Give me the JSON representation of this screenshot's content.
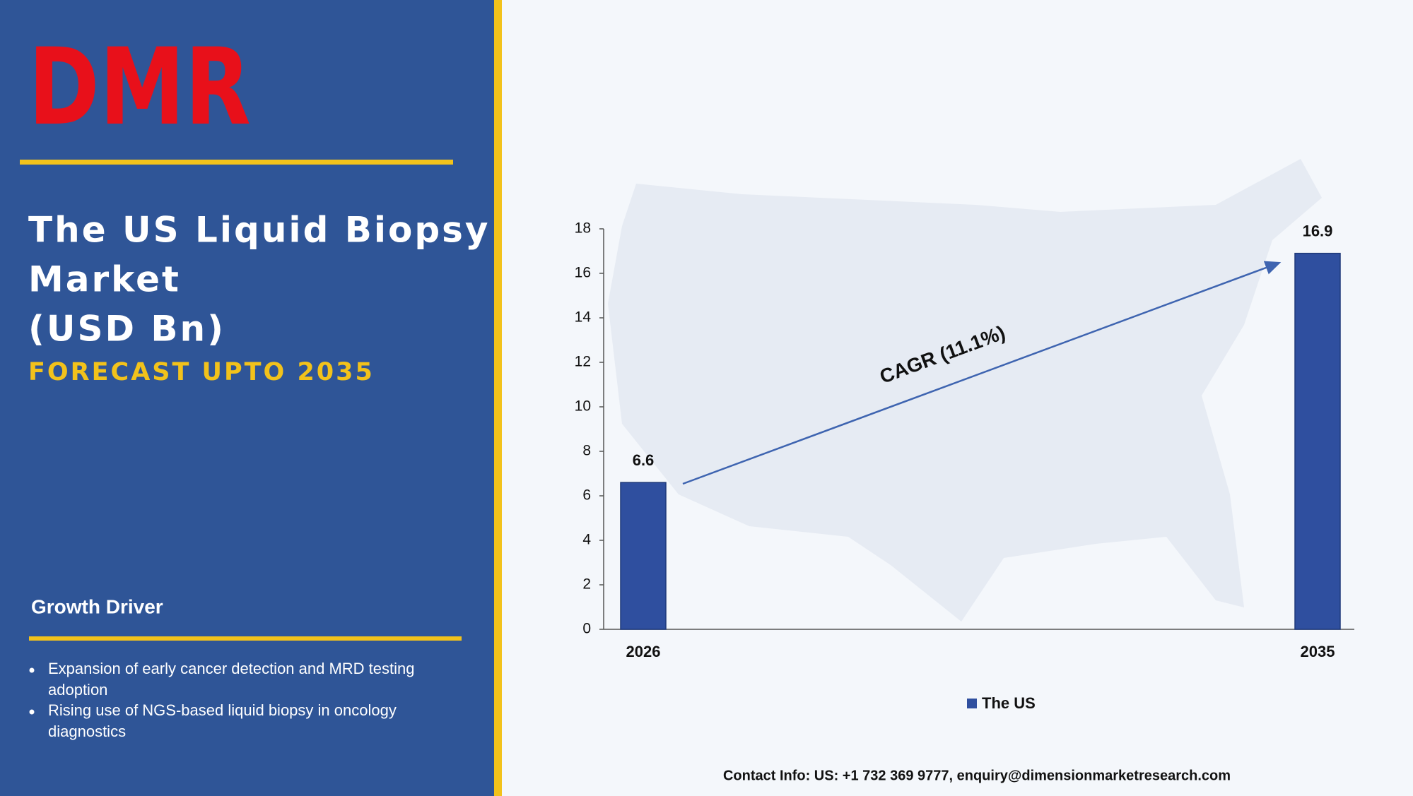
{
  "logo": "DMR",
  "header": {
    "title_lines": [
      "The US Liquid Biopsy",
      "Market",
      "(USD Bn)"
    ],
    "subtitle": "FORECAST UPTO 2035"
  },
  "growth_driver": {
    "heading": "Growth Driver",
    "bullets": [
      "Expansion of early cancer detection and MRD testing adoption",
      "Rising use of NGS-based liquid biopsy in oncology diagnostics"
    ]
  },
  "contact": "Contact Info: US: +1 732 369 9777, enquiry@dimensionmarketresearch.com",
  "chart_data": {
    "type": "bar",
    "categories": [
      "2026",
      "2035"
    ],
    "series": [
      {
        "name": "The US",
        "color": "#2f4f9f",
        "values": [
          6.6,
          16.9
        ]
      }
    ],
    "ylim": [
      0,
      18
    ],
    "yticks": [
      0,
      2,
      4,
      6,
      8,
      10,
      12,
      14,
      16,
      18
    ],
    "annotation": "CAGR (11.1%)",
    "legend": "bottom"
  }
}
